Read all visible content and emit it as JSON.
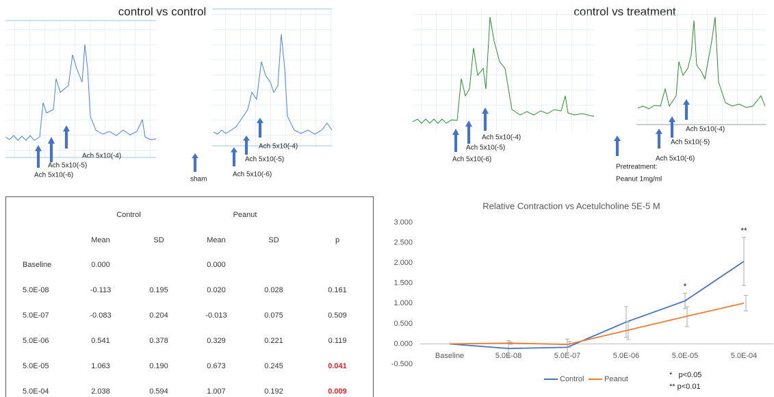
{
  "panels": {
    "left_title": "control vs control",
    "right_title": "control vs treatment",
    "labels": [
      "Ach 5x10(-4)",
      "Ach 5x10(-5)",
      "Ach 5x10(-6)",
      "sham",
      "Pretreatment:",
      "Peanut 1mg/ml"
    ]
  },
  "table": {
    "groups": [
      "Control",
      "Peanut"
    ],
    "columns": [
      "Mean",
      "SD",
      "Mean",
      "SD",
      "p"
    ],
    "highlight_color": "#e02020",
    "rows": [
      {
        "cells": [
          "Baseline",
          "0.000",
          null,
          "0.000",
          null,
          null
        ]
      },
      {
        "cells": [
          "5.0E-08",
          "-0.113",
          "0.195",
          "0.020",
          "0.028",
          "0.161"
        ]
      },
      {
        "cells": [
          "5.0E-07",
          "-0.083",
          "0.204",
          "-0.013",
          "0.075",
          "0.509"
        ]
      },
      {
        "cells": [
          "5.0E-06",
          "0.541",
          "0.378",
          "0.329",
          "0.221",
          "0.119"
        ]
      },
      {
        "cells": [
          "5.0E-05",
          "1.063",
          "0.190",
          "0.673",
          "0.245",
          "0.041"
        ],
        "p_highlight": true
      },
      {
        "cells": [
          "5.0E-04",
          "2.038",
          "0.594",
          "1.007",
          "0.192",
          "0.009"
        ],
        "p_highlight": true
      }
    ]
  },
  "chart_data": {
    "type": "line",
    "title": "Relative Contraction vs Acetulcholine 5E-5 M",
    "categories": [
      "Baseline",
      "5.0E-08",
      "5.0E-07",
      "5.0E-06",
      "5.0E-05",
      "5.0E-04"
    ],
    "series": [
      {
        "name": "Control",
        "color": "#4472c4",
        "values": [
          0,
          -0.113,
          -0.083,
          0.541,
          1.063,
          2.038
        ],
        "errors": [
          null,
          0.195,
          0.204,
          0.378,
          0.19,
          0.594
        ]
      },
      {
        "name": "Peanut",
        "color": "#ed7d31",
        "values": [
          0,
          0.02,
          -0.013,
          0.329,
          0.673,
          1.007
        ],
        "errors": [
          null,
          0.028,
          0.075,
          0.221,
          0.245,
          0.192
        ]
      }
    ],
    "ylim": [
      -0.5,
      3.0
    ],
    "yticks": [
      {
        "value": 3,
        "label": "3.000"
      },
      {
        "value": 2.5,
        "label": "2.500"
      },
      {
        "value": 2,
        "label": "2.000"
      },
      {
        "value": 1.5,
        "label": "1.500"
      },
      {
        "value": 1,
        "label": "1.000"
      },
      {
        "value": 0.5,
        "label": "0.500"
      },
      {
        "value": 0,
        "label": "0.000"
      },
      {
        "value": -0.5,
        "label": "-0.500"
      }
    ],
    "grid": false,
    "legend": "bottom",
    "annotations": [
      {
        "text": "*",
        "category": "5.0E-05"
      },
      {
        "text": "**",
        "category": "5.0E-04"
      }
    ],
    "notes": [
      "*   p<0.05",
      "** p<0.01"
    ]
  }
}
